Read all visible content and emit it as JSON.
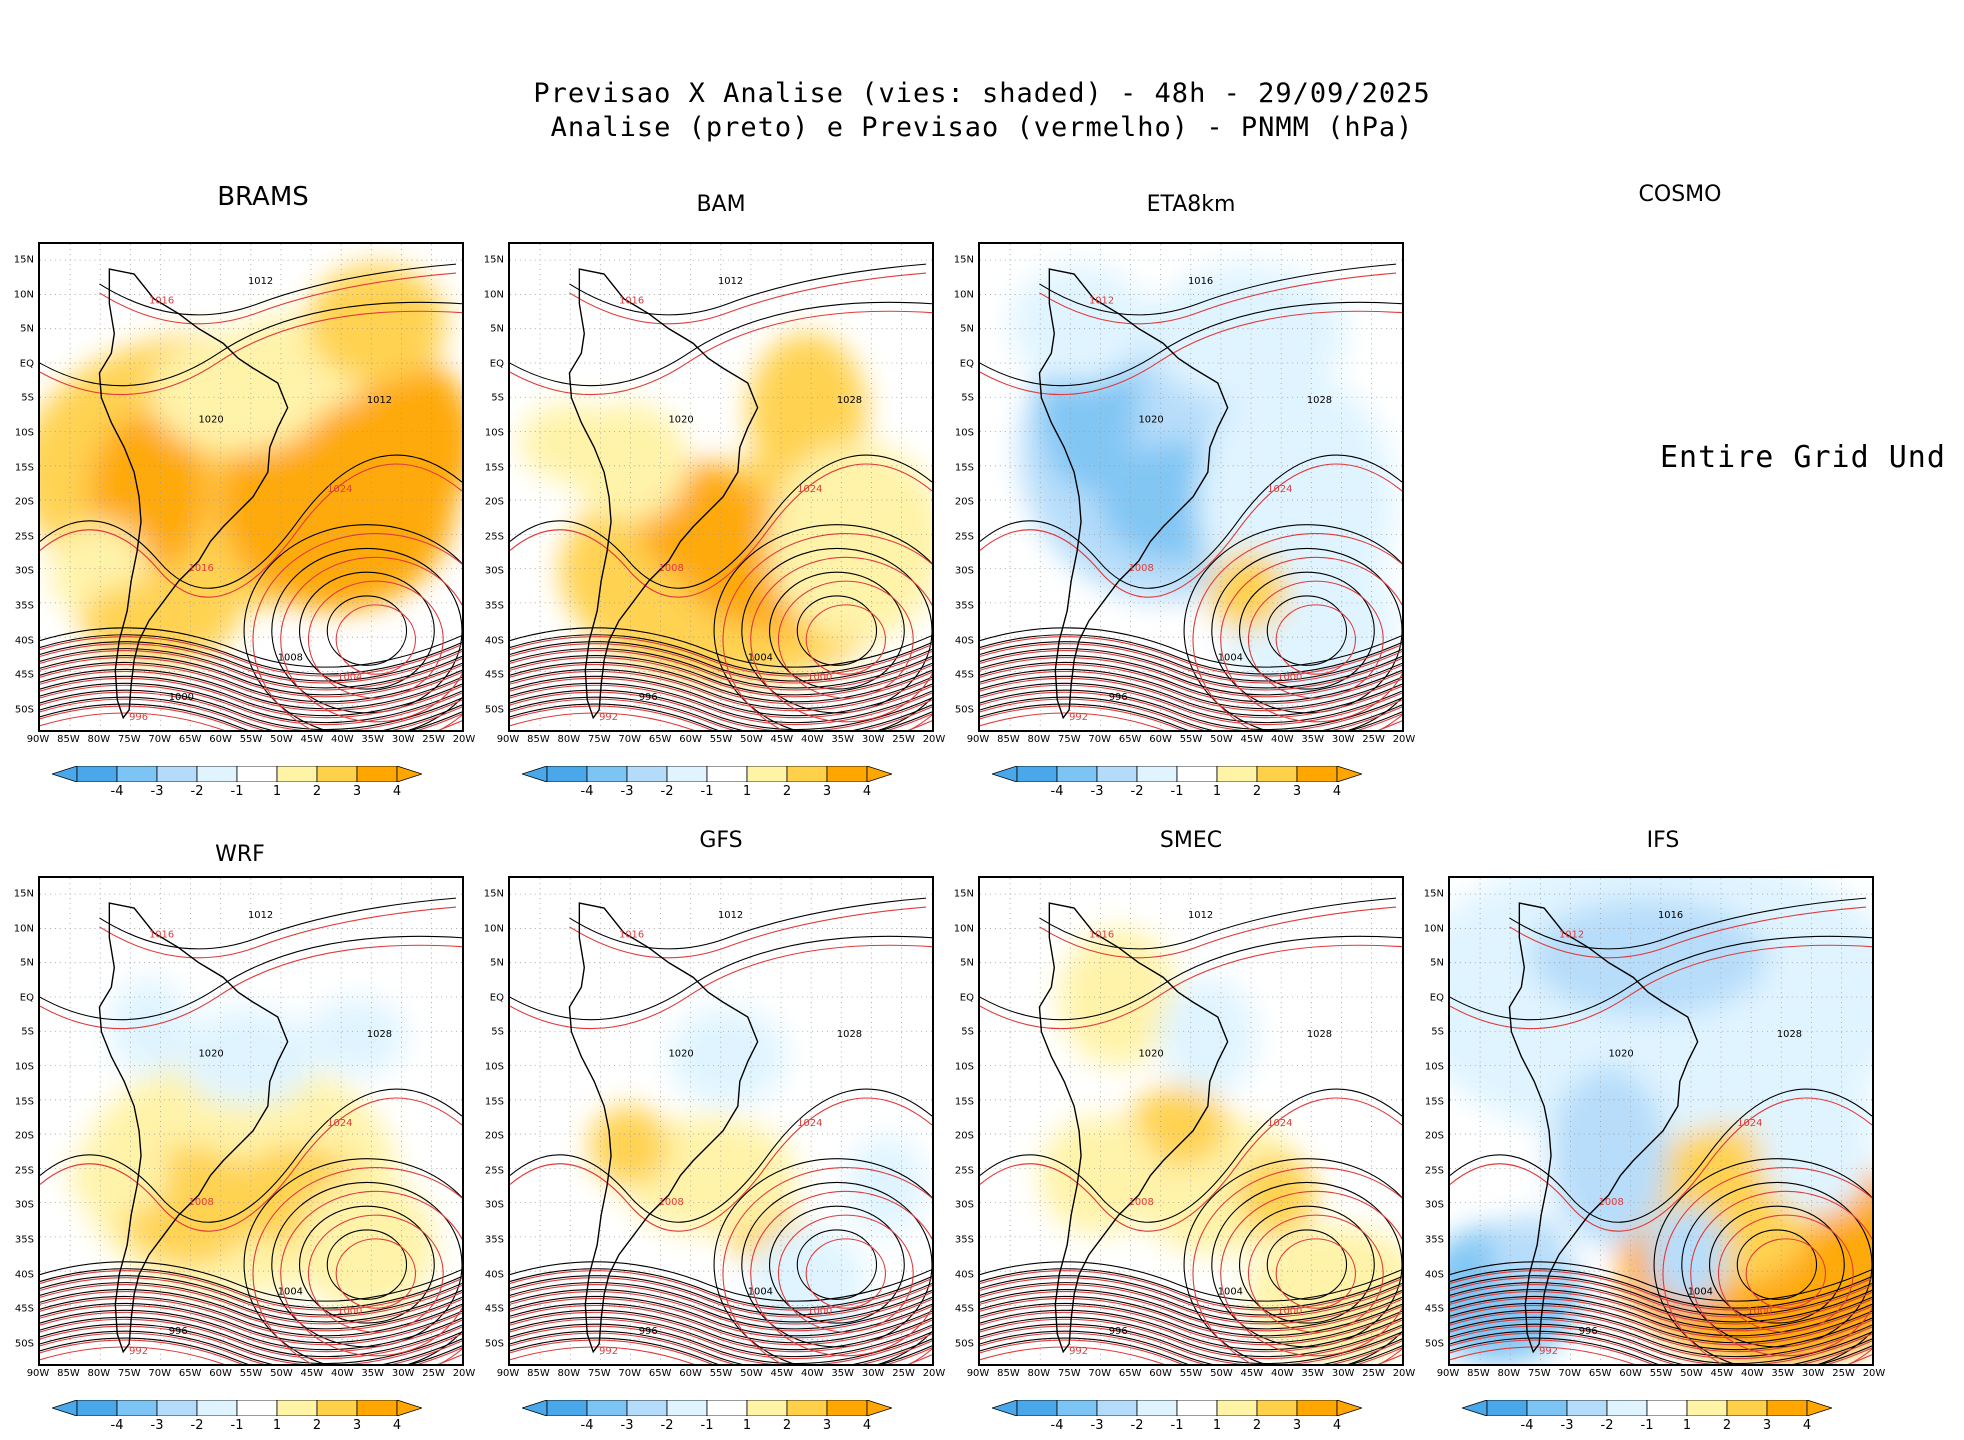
{
  "title": {
    "line1": "Previsao X Analise (vies: shaded) - 48h - 29/09/2025",
    "line2": "Analise (preto) e Previsao (vermelho) - PNMM (hPa)"
  },
  "axes": {
    "lon_labels": [
      "90W",
      "85W",
      "80W",
      "75W",
      "70W",
      "65W",
      "60W",
      "55W",
      "50W",
      "45W",
      "40W",
      "35W",
      "30W",
      "25W",
      "20W"
    ],
    "lat_labels": [
      "15N",
      "10N",
      "5N",
      "EQ",
      "5S",
      "10S",
      "15S",
      "20S",
      "25S",
      "30S",
      "35S",
      "40S",
      "45S",
      "50S"
    ]
  },
  "colorbar": {
    "labels": [
      "-4",
      "-3",
      "-2",
      "-1",
      "1",
      "2",
      "3",
      "4"
    ],
    "colors": [
      "#4aa8ea",
      "#7cc4f4",
      "#b4dcfa",
      "#dff4ff",
      "#ffffff",
      "#fff3a6",
      "#ffd04a",
      "#ffa600"
    ]
  },
  "colors": {
    "analysis": "#000000",
    "forecast": "#e03a3a"
  },
  "panels": [
    {
      "name": "BRAMS",
      "bias": "warm",
      "isobars": [
        "1012",
        "1016",
        "1020",
        "1024",
        "1012",
        "1016",
        "1008",
        "1004",
        "1000",
        "996"
      ]
    },
    {
      "name": "BAM",
      "bias": "warm-south",
      "isobars": [
        "1012",
        "1016",
        "1020",
        "1024",
        "1028",
        "1008",
        "1004",
        "1000",
        "996",
        "992"
      ]
    },
    {
      "name": "ETA8km",
      "bias": "cold",
      "isobars": [
        "1016",
        "1012",
        "1020",
        "1024",
        "1028",
        "1008",
        "1004",
        "1000",
        "996",
        "992"
      ]
    },
    {
      "name": "COSMO",
      "status": "Entire Grid Und"
    },
    {
      "name": "WRF",
      "bias": "mixed",
      "isobars": [
        "1012",
        "1016",
        "1020",
        "1024",
        "1028",
        "1008",
        "1004",
        "1000",
        "996",
        "992"
      ]
    },
    {
      "name": "GFS",
      "bias": "neutral",
      "isobars": [
        "1012",
        "1016",
        "1020",
        "1024",
        "1028",
        "1008",
        "1004",
        "1000",
        "996",
        "992"
      ]
    },
    {
      "name": "SMEC",
      "bias": "neutral-warm",
      "isobars": [
        "1012",
        "1016",
        "1020",
        "1024",
        "1028",
        "1008",
        "1004",
        "1000",
        "996",
        "992"
      ]
    },
    {
      "name": "IFS",
      "bias": "cold-north",
      "isobars": [
        "1016",
        "1012",
        "1020",
        "1024",
        "1028",
        "1008",
        "1004",
        "1000",
        "996",
        "992"
      ]
    }
  ]
}
